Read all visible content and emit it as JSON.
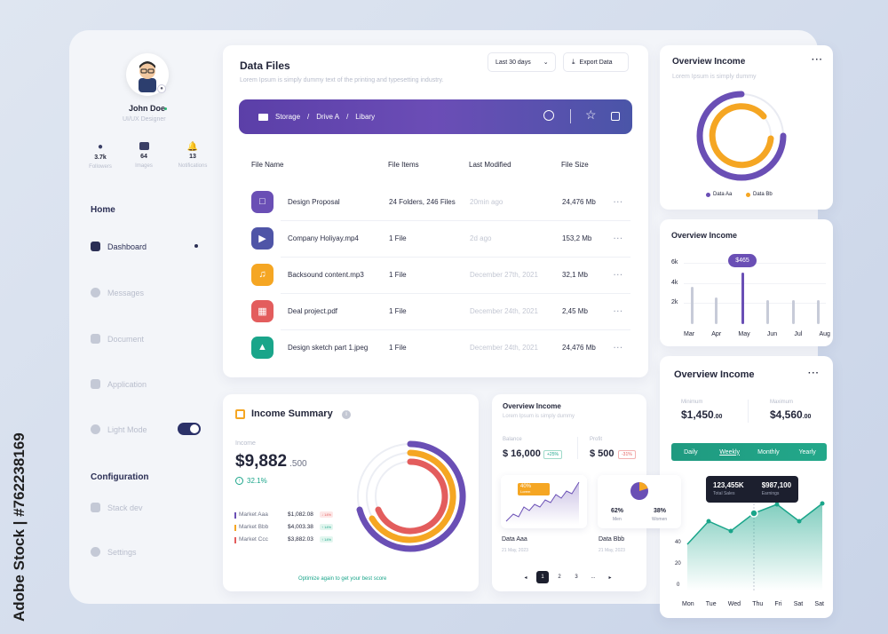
{
  "watermark": "Adobe Stock | #762238169",
  "profile": {
    "name": "John Doe",
    "role": "UI/UX Designer",
    "stats": [
      {
        "value": "3.7k",
        "label": "Followers"
      },
      {
        "value": "64",
        "label": "Images"
      },
      {
        "value": "13",
        "label": "Notifications"
      }
    ]
  },
  "sidebar": {
    "home_heading": "Home",
    "items": [
      {
        "label": "Dashboard"
      },
      {
        "label": "Messages"
      },
      {
        "label": "Document"
      },
      {
        "label": "Application"
      },
      {
        "label": "Light Mode"
      }
    ],
    "config_heading": "Configuration",
    "config_items": [
      {
        "label": "Stack dev"
      },
      {
        "label": "Settings"
      }
    ]
  },
  "data_files": {
    "title": "Data Files",
    "subtitle": "Lorem Ipsum is simply dummy text of the printing and typesetting industry.",
    "period": "Last 30 days",
    "export": "Export Data",
    "breadcrumb": [
      "Storage",
      "/",
      "Drive A",
      "/",
      "Libary"
    ],
    "columns": [
      "File Name",
      "File Items",
      "Last Modified",
      "File Size"
    ],
    "rows": [
      {
        "name": "Design Proposal",
        "items": "24 Folders, 246 Files",
        "modified": "20min ago",
        "size": "24,476 Mb",
        "color": "#6a4fb5"
      },
      {
        "name": "Company Holiyay.mp4",
        "items": "1 File",
        "modified": "2d ago",
        "size": "153,2 Mb",
        "color": "#4f55a7"
      },
      {
        "name": "Backsound content.mp3",
        "items": "1 File",
        "modified": "December 27th, 2021",
        "size": "32,1 Mb",
        "color": "#f5a623"
      },
      {
        "name": "Deal project.pdf",
        "items": "1 File",
        "modified": "December 24th, 2021",
        "size": "2,45 Mb",
        "color": "#e35d5d"
      },
      {
        "name": "Design sketch part 1.jpeg",
        "items": "1 File",
        "modified": "December 24th, 2021",
        "size": "24,476 Mb",
        "color": "#1aa58a"
      }
    ]
  },
  "overview1": {
    "title": "Overview Income",
    "subtitle": "Lorem Ipsum is simply dummy",
    "legend": [
      "Data Aa",
      "Data Bb"
    ]
  },
  "overview2": {
    "title": "Overview Income",
    "tooltip": "$465",
    "yticks": [
      "6k",
      "4k",
      "2k"
    ],
    "months": [
      "Mar",
      "Apr",
      "May",
      "Jun",
      "Jul",
      "Aug"
    ]
  },
  "overview3": {
    "title": "Overview Income",
    "minimum_label": "Minimum",
    "minimum": "$1,450",
    "minimum_dec": ".00",
    "maximum_label": "Maximum",
    "maximum": "$4,560",
    "maximum_dec": ".00",
    "tabs": [
      "Daily",
      "Weekly",
      "Monthly",
      "Yearly"
    ],
    "tip_sales": "123,455K",
    "tip_sales_label": "Total Sales",
    "tip_earn": "$987,100",
    "tip_earn_label": "Earnings",
    "yticks": [
      "40",
      "20",
      "0"
    ],
    "days": [
      "Mon",
      "Tue",
      "Wed",
      "Thu",
      "Fri",
      "Sat",
      "Sat"
    ]
  },
  "income_summary": {
    "title": "Income Summary",
    "label": "Income",
    "amount": "$9,882",
    "cents": ".500",
    "growth": "32.1%",
    "markets": [
      {
        "name": "Market Aaa",
        "value": "$1,082.08",
        "badge": "↓ 14%",
        "color": "#6a4fb5"
      },
      {
        "name": "Market Bbb",
        "value": "$4,003.38",
        "badge": "↑ 14%",
        "color": "#f5a623"
      },
      {
        "name": "Market Ccc",
        "value": "$3,882.03",
        "badge": "↑ 14%",
        "color": "#e35d5d"
      }
    ],
    "footer": "Optimize again to get your best score"
  },
  "overview4": {
    "title": "Overview Income",
    "subtitle": "Lorem Ipsum is simply dummy",
    "balance_label": "Balance",
    "balance": "$ 16,000",
    "balance_badge": "+25%",
    "profit_label": "Profit",
    "profit": "$ 500",
    "profit_badge": "-31%",
    "mini1_badge": "40%",
    "mini1_sub": "Lorem",
    "men_pct": "62%",
    "men_label": "Men",
    "women_pct": "38%",
    "women_label": "Women",
    "data_a": "Data Aaa",
    "data_a_date": "21 May, 2023",
    "data_b": "Data Bbb",
    "data_b_date": "21 May, 2023",
    "pages": [
      "1",
      "2",
      "3",
      "..."
    ]
  }
}
